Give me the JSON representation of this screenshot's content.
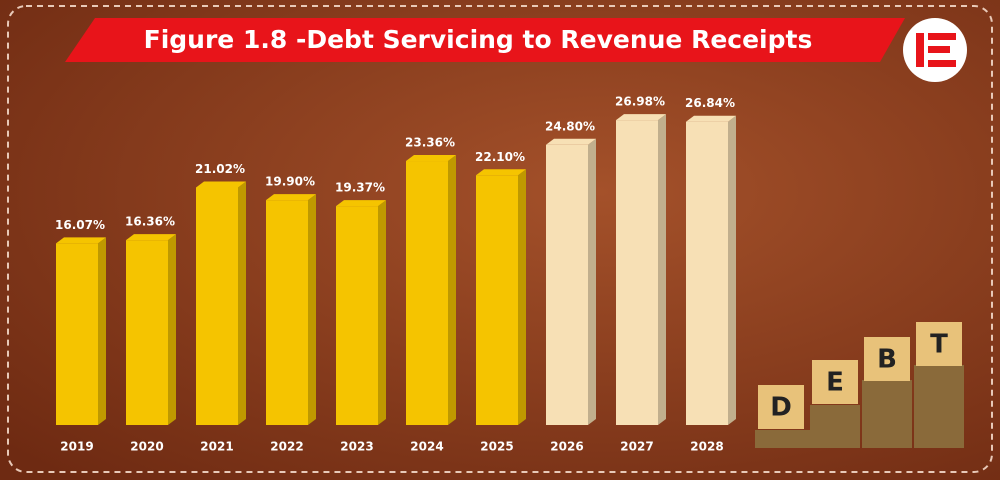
{
  "chart_data": {
    "type": "bar",
    "title": "Figure 1.8 -Debt Servicing to Revenue Receipts",
    "categories": [
      "2019",
      "2020",
      "2021",
      "2022",
      "2023",
      "2024",
      "2025",
      "2026",
      "2027",
      "2028"
    ],
    "values": [
      16.07,
      16.36,
      21.02,
      19.9,
      19.37,
      23.36,
      22.1,
      24.8,
      26.98,
      26.84
    ],
    "value_labels": [
      "16.07%",
      "16.36%",
      "21.02%",
      "19.90%",
      "19.37%",
      "23.36%",
      "22.10%",
      "24.80%",
      "26.98%",
      "26.84%"
    ],
    "colors": [
      "#f5c400",
      "#f5c400",
      "#f5c400",
      "#f5c400",
      "#f5c400",
      "#f5c400",
      "#f5c400",
      "#f7e0b5",
      "#f7e0b5",
      "#f7e0b5"
    ]
  },
  "photo_blocks": [
    "D",
    "E",
    "B",
    "T"
  ]
}
